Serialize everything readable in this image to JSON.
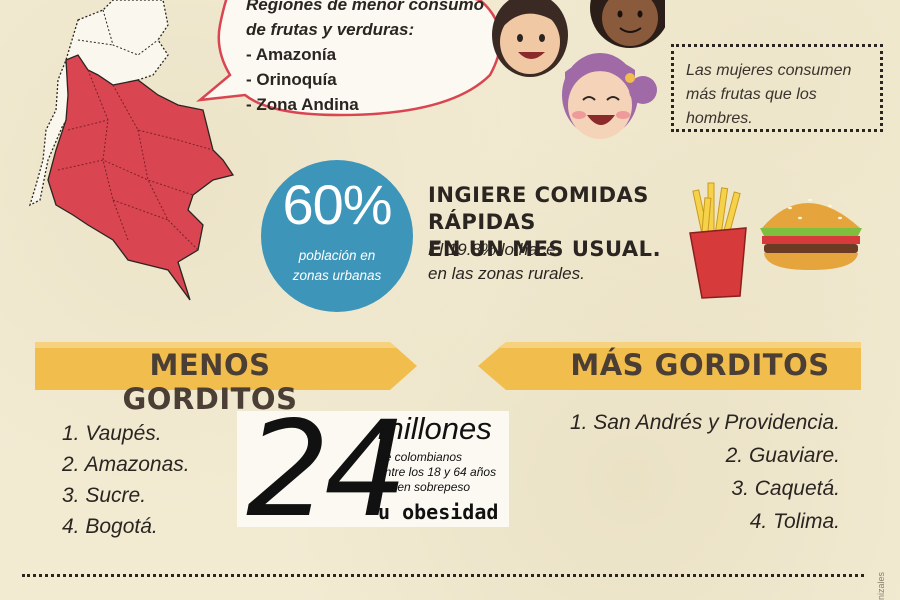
{
  "bubble": {
    "header_line1": "Regiones de menor consumo",
    "header_line2": "de frutas y verduras:",
    "items": [
      "- Amazonía",
      "- Orinoquía",
      "- Zona Andina"
    ]
  },
  "women_note": {
    "line1": "Las mujeres consumen",
    "line2": "más frutas que los",
    "line3": "hombres."
  },
  "urban": {
    "percent": "60%",
    "caption_line1": "población en",
    "caption_line2": "zonas urbanas"
  },
  "fast_food": {
    "title_line1": "INGIERE COMIDAS RÁPIDAS",
    "title_line2": "EN UN MES USUAL.",
    "sub_line1": "El 19.8% lo hace",
    "sub_line2": "en las zonas rurales."
  },
  "banners": {
    "left": "MENOS GORDITOS",
    "right": "MÁS GORDITOS"
  },
  "less_list": [
    "1. Vaupés.",
    "2. Amazonas.",
    "3. Sucre.",
    "4. Bogotá."
  ],
  "more_list": [
    "1. San Andrés y Providencia.",
    "2. Guaviare.",
    "3. Caquetá.",
    "4. Tolima."
  ],
  "overweight": {
    "number": "24",
    "unit": "millones",
    "sub_line1": "de colombianos",
    "sub_line2": "entre los 18 y 64 años",
    "sub_line3": "tienen sobrepeso",
    "last": "u obesidad"
  },
  "credit": "nizales",
  "colors": {
    "background": "#f2ebd2",
    "map_red": "#d94550",
    "circle_blue": "#3d95ba",
    "banner_yellow": "#f1bd4d",
    "bubble_border": "#d94550"
  }
}
